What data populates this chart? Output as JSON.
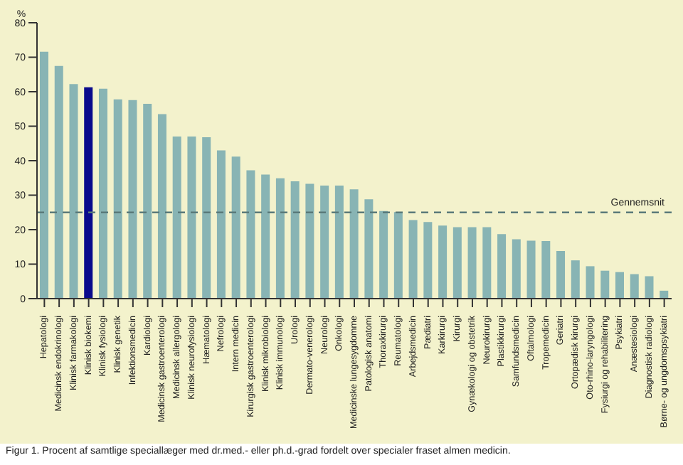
{
  "chart_data": {
    "type": "bar",
    "ylabel": "%",
    "categories": [
      "Hepatologi",
      "Medicinsk endokrinologi",
      "Klinisk farmakologi",
      "Klinisk biokemi",
      "Klinisk fysiologi",
      "Klinisk genetik",
      "Infektionsmedicin",
      "Kardiologi",
      "Medicinsk gastroenterologi",
      "Medicinsk allergologi",
      "Klinisk neurofysiologi",
      "Hæmatologi",
      "Nefrologi",
      "Intern medicin",
      "Kirurgisk gastroenterologi",
      "Klinisk mikrobiologi",
      "Klinisk immunologi",
      "Urologi",
      "Dermato-venerologi",
      "Neurologi",
      "Onkologi",
      "Medicinske lungesygdomme",
      "Patologisk anatomi",
      "Thoraxkirurgi",
      "Reumatologi",
      "Arbejdsmedicin",
      "Pædiatri",
      "Karkirurgi",
      "Kirurgi",
      "Gynækologi og obstetrik",
      "Neurokirurgi",
      "Plastikkirurgi",
      "Samfundsmedicin",
      "Oftalmologi",
      "Tropemedicin",
      "Geriatri",
      "Ortopædisk kirurgi",
      "Oto-rhino-laryngologi",
      "Fysiurgi og rehabilitering",
      "Psykiatri",
      "Anæstesiologi",
      "Diagnostisk radiologi",
      "Børne- og ungdomspsykiatri"
    ],
    "values": [
      71.6,
      67.5,
      62.2,
      61.3,
      60.9,
      57.8,
      57.6,
      56.5,
      53.5,
      47,
      47,
      46.8,
      43,
      41.2,
      37.2,
      36,
      34.9,
      34,
      33.3,
      32.8,
      32.8,
      31.7,
      28.8,
      25.4,
      25.1,
      22.8,
      22.2,
      21.2,
      20.7,
      20.7,
      20.7,
      18.7,
      17.2,
      16.8,
      16.7,
      13.8,
      11.1,
      9.4,
      8.1,
      7.7,
      7.1,
      6.5,
      2.3
    ],
    "colors": [
      "#88b4b4",
      "#88b4b4",
      "#88b4b4",
      "#0a0a8c",
      "#88b4b4",
      "#88b4b4",
      "#88b4b4",
      "#88b4b4",
      "#88b4b4",
      "#88b4b4",
      "#88b4b4",
      "#88b4b4",
      "#88b4b4",
      "#88b4b4",
      "#88b4b4",
      "#88b4b4",
      "#88b4b4",
      "#88b4b4",
      "#88b4b4",
      "#88b4b4",
      "#88b4b4",
      "#88b4b4",
      "#88b4b4",
      "#88b4b4",
      "#88b4b4",
      "#88b4b4",
      "#88b4b4",
      "#88b4b4",
      "#88b4b4",
      "#88b4b4",
      "#88b4b4",
      "#88b4b4",
      "#88b4b4",
      "#88b4b4",
      "#88b4b4",
      "#88b4b4",
      "#88b4b4",
      "#88b4b4",
      "#88b4b4",
      "#88b4b4",
      "#88b4b4",
      "#88b4b4",
      "#88b4b4"
    ],
    "ylim": [
      0,
      80
    ],
    "yticks": [
      0,
      10,
      20,
      30,
      40,
      50,
      60,
      70,
      80
    ],
    "ref_lines": [
      {
        "axis": "y",
        "value": 25,
        "label": "Gennemsnit",
        "color": "#5a7a7a",
        "line_style": "dashed"
      }
    ],
    "annotations": [
      "Figur 1.  Procent af samtlige speciallæger med dr.med.- eller ph.d.-grad fordelt over specialer fraset almen medicin."
    ],
    "grid": false,
    "legend": false
  }
}
